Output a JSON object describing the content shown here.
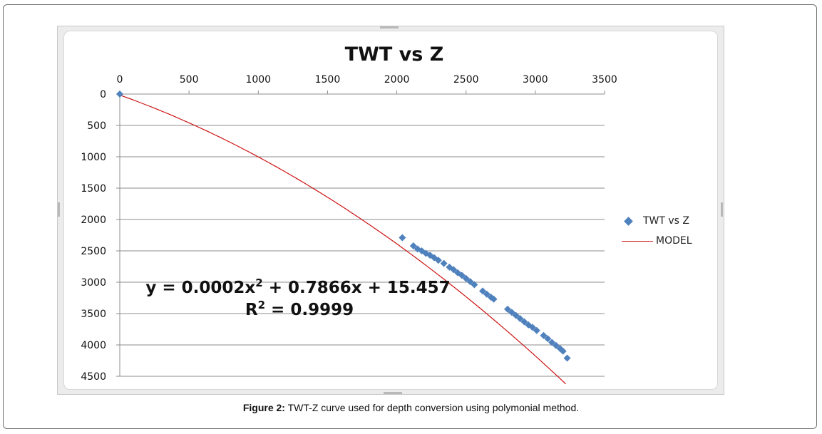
{
  "chart_data": {
    "type": "scatter",
    "title": "TWT vs Z",
    "x_axis": {
      "position": "top",
      "ticks": [
        0,
        500,
        1000,
        1500,
        2000,
        2500,
        3000,
        3500
      ],
      "range": [
        0,
        3500
      ]
    },
    "y_axis": {
      "reversed": true,
      "ticks": [
        0,
        500,
        1000,
        1500,
        2000,
        2500,
        3000,
        3500,
        4000,
        4500
      ],
      "range": [
        0,
        4500
      ]
    },
    "grid": "horizontal",
    "legend_position": "right",
    "series": [
      {
        "name": "TWT vs Z",
        "kind": "markers",
        "color": "#4f81bd",
        "points": [
          [
            0,
            0
          ],
          [
            2040,
            2290
          ],
          [
            2120,
            2420
          ],
          [
            2150,
            2470
          ],
          [
            2180,
            2500
          ],
          [
            2210,
            2540
          ],
          [
            2240,
            2570
          ],
          [
            2270,
            2610
          ],
          [
            2300,
            2650
          ],
          [
            2340,
            2700
          ],
          [
            2380,
            2760
          ],
          [
            2410,
            2800
          ],
          [
            2440,
            2850
          ],
          [
            2470,
            2890
          ],
          [
            2500,
            2940
          ],
          [
            2530,
            2990
          ],
          [
            2560,
            3040
          ],
          [
            2620,
            3140
          ],
          [
            2650,
            3190
          ],
          [
            2680,
            3240
          ],
          [
            2700,
            3270
          ],
          [
            2800,
            3430
          ],
          [
            2830,
            3480
          ],
          [
            2860,
            3530
          ],
          [
            2890,
            3580
          ],
          [
            2920,
            3630
          ],
          [
            2950,
            3680
          ],
          [
            2980,
            3720
          ],
          [
            3010,
            3770
          ],
          [
            3060,
            3850
          ],
          [
            3090,
            3900
          ],
          [
            3120,
            3960
          ],
          [
            3150,
            4010
          ],
          [
            3180,
            4060
          ],
          [
            3200,
            4100
          ],
          [
            3230,
            4210
          ]
        ]
      },
      {
        "name": "MODEL",
        "kind": "polynomial-trendline",
        "color": "#cc1111",
        "coefficients": {
          "a": 0.0002,
          "b": 0.7866,
          "c": 15.457
        },
        "x_range": [
          0,
          3220
        ]
      }
    ],
    "annotations": [
      {
        "text": "y = 0.0002x",
        "superscript": "2",
        "text_after": " + 0.7866x + 15.457"
      },
      {
        "text": "R",
        "superscript": "2",
        "text_after": " = 0.9999"
      }
    ]
  },
  "legend": {
    "items": [
      "TWT vs Z",
      "MODEL"
    ]
  },
  "caption": {
    "label": "Figure 2:",
    "text": " TWT-Z curve used for depth conversion using polymonial method."
  }
}
